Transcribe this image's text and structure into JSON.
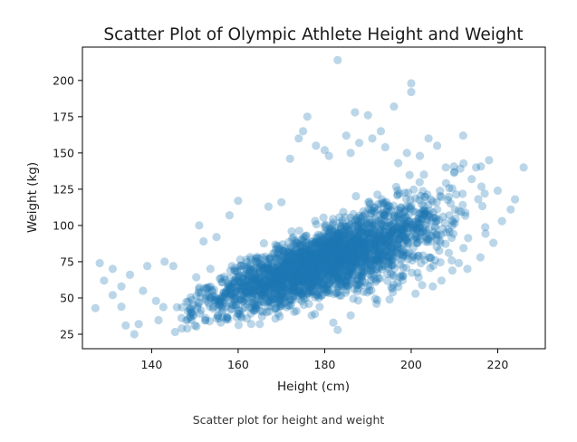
{
  "chart_data": {
    "type": "scatter",
    "title": "Scatter Plot of Olympic Athlete Height and Weight",
    "xlabel": "Height (cm)",
    "ylabel": "Weight (kg)",
    "xlim": [
      124,
      231
    ],
    "ylim": [
      15,
      223
    ],
    "xticks": [
      140,
      160,
      180,
      200,
      220
    ],
    "yticks": [
      25,
      50,
      75,
      100,
      125,
      150,
      175,
      200
    ],
    "grid": false,
    "point_color": "#1f77b4",
    "point_alpha": 0.3,
    "trend": {
      "description_values": [
        [
          136,
          35
        ],
        [
          150,
          45
        ],
        [
          160,
          55
        ],
        [
          170,
          65
        ],
        [
          180,
          75
        ],
        [
          190,
          85
        ],
        [
          200,
          95
        ],
        [
          210,
          105
        ],
        [
          220,
          112
        ]
      ]
    },
    "series": [
      {
        "values": [
          [
            127,
            43
          ],
          [
            128,
            74
          ],
          [
            129,
            62
          ],
          [
            131,
            70
          ],
          [
            131,
            52
          ],
          [
            133,
            44
          ],
          [
            133,
            58
          ],
          [
            134,
            31
          ],
          [
            135,
            66
          ],
          [
            136,
            25
          ],
          [
            137,
            32
          ],
          [
            138,
            55
          ],
          [
            139,
            72
          ],
          [
            141,
            48
          ],
          [
            143,
            75
          ],
          [
            145,
            72
          ],
          [
            147,
            29
          ],
          [
            150,
            31
          ],
          [
            151,
            100
          ],
          [
            152,
            89
          ],
          [
            155,
            92
          ],
          [
            158,
            107
          ],
          [
            160,
            117
          ],
          [
            163,
            32
          ],
          [
            165,
            32
          ],
          [
            167,
            113
          ],
          [
            170,
            116
          ],
          [
            172,
            146
          ],
          [
            172,
            56
          ],
          [
            174,
            160
          ],
          [
            175,
            165
          ],
          [
            176,
            175
          ],
          [
            177,
            38
          ],
          [
            178,
            155
          ],
          [
            180,
            152
          ],
          [
            181,
            148
          ],
          [
            182,
            33
          ],
          [
            183,
            28
          ],
          [
            183,
            214
          ],
          [
            185,
            162
          ],
          [
            186,
            150
          ],
          [
            186,
            38
          ],
          [
            187,
            178
          ],
          [
            188,
            157
          ],
          [
            190,
            176
          ],
          [
            191,
            160
          ],
          [
            192,
            46
          ],
          [
            193,
            165
          ],
          [
            194,
            154
          ],
          [
            195,
            49
          ],
          [
            196,
            182
          ],
          [
            197,
            143
          ],
          [
            198,
            65
          ],
          [
            199,
            150
          ],
          [
            200,
            198
          ],
          [
            200,
            192
          ],
          [
            201,
            53
          ],
          [
            202,
            148
          ],
          [
            204,
            160
          ],
          [
            205,
            58
          ],
          [
            206,
            155
          ],
          [
            207,
            62
          ],
          [
            208,
            140
          ],
          [
            210,
            137
          ],
          [
            211,
            74
          ],
          [
            212,
            162
          ],
          [
            213,
            70
          ],
          [
            214,
            132
          ],
          [
            215,
            140
          ],
          [
            216,
            78
          ],
          [
            217,
            122
          ],
          [
            218,
            145
          ],
          [
            219,
            88
          ],
          [
            220,
            124
          ],
          [
            221,
            103
          ],
          [
            223,
            111
          ],
          [
            224,
            118
          ],
          [
            226,
            140
          ]
        ]
      }
    ]
  },
  "caption": "Scatter plot for height and weight"
}
